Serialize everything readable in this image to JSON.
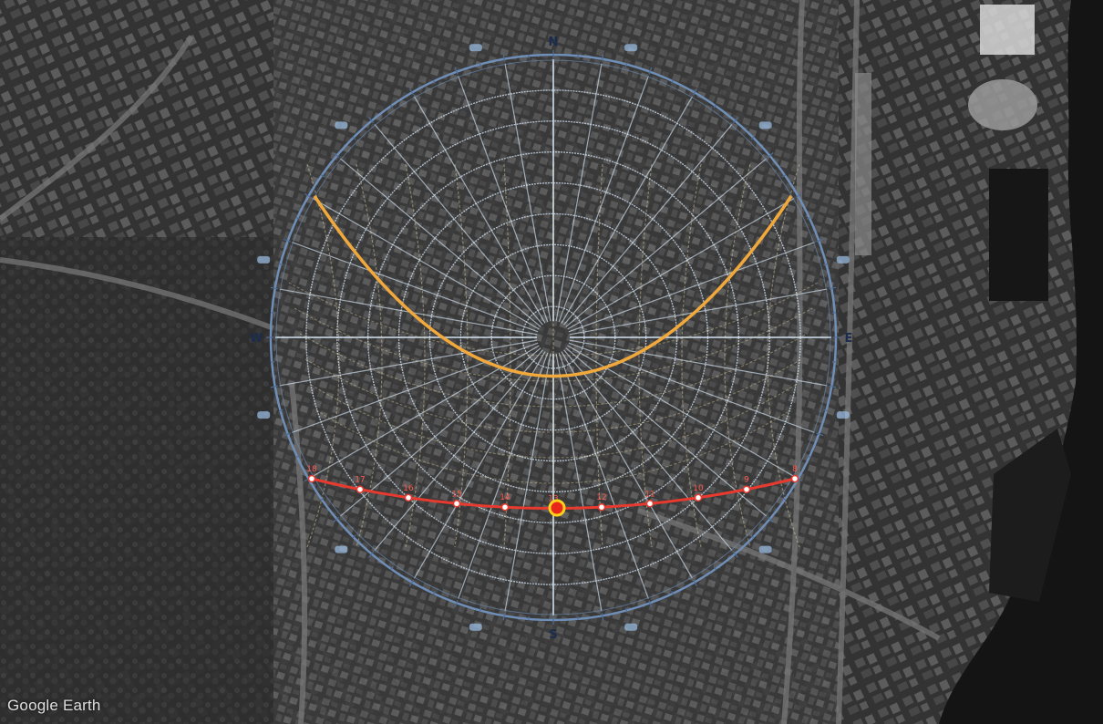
{
  "map": {
    "attribution": "Google Earth",
    "colors": {
      "ring": "#6f8fb8",
      "grid": "#d6e6f5",
      "winter_path": "#f2a93b",
      "summer_path": "#e83a2e",
      "sun": "#ffd21a",
      "water": "#141414"
    }
  },
  "sun_diagram": {
    "cardinals": {
      "north": "N",
      "east": "E",
      "south": "S",
      "west": "W"
    },
    "hour_markers": [
      {
        "label": "18"
      },
      {
        "label": "17"
      },
      {
        "label": "16"
      },
      {
        "label": "15"
      },
      {
        "label": "14"
      },
      {
        "label": "13"
      },
      {
        "label": "12"
      },
      {
        "label": "11"
      },
      {
        "label": "10"
      },
      {
        "label": "9"
      },
      {
        "label": "8"
      }
    ]
  }
}
